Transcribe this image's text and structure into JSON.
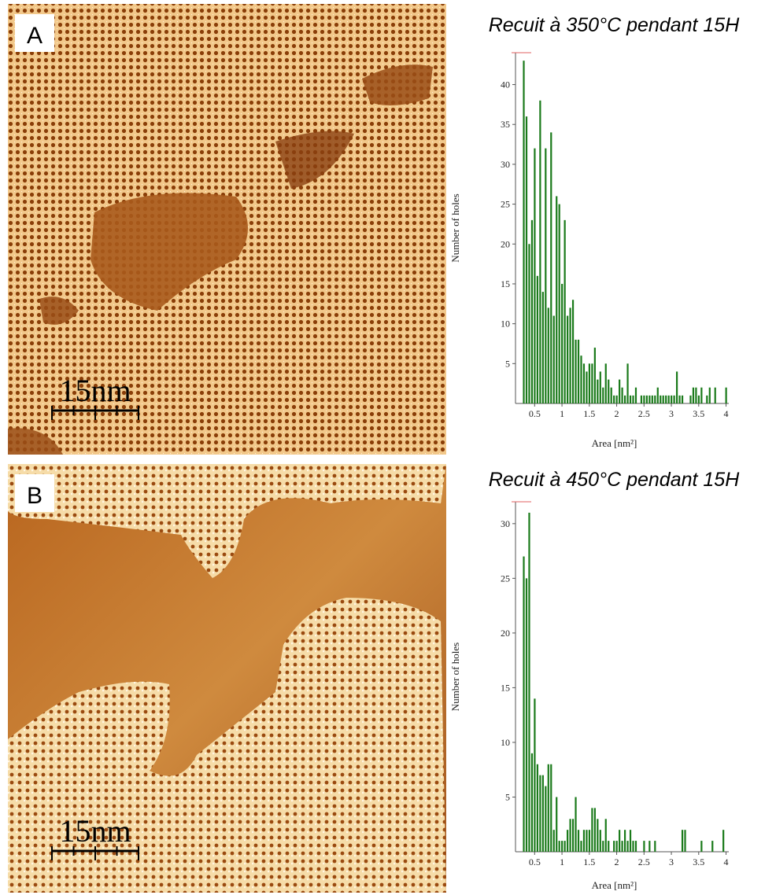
{
  "chart_data": [
    {
      "type": "bar",
      "title": "Recuit à 350°C pendant 15H",
      "panel_label": "A",
      "scale_bar_label": "15nm",
      "x_label": "Area [nm²]",
      "y_label": "Number of holes",
      "color": "#1a7a1a",
      "x": [
        0.3,
        0.35,
        0.4,
        0.45,
        0.5,
        0.55,
        0.6,
        0.65,
        0.7,
        0.75,
        0.8,
        0.85,
        0.9,
        0.95,
        1.0,
        1.05,
        1.1,
        1.15,
        1.2,
        1.25,
        1.3,
        1.35,
        1.4,
        1.45,
        1.5,
        1.55,
        1.6,
        1.65,
        1.7,
        1.75,
        1.8,
        1.85,
        1.9,
        1.95,
        2.0,
        2.05,
        2.1,
        2.15,
        2.2,
        2.25,
        2.3,
        2.35,
        2.4,
        2.45,
        2.5,
        2.55,
        2.6,
        2.65,
        2.7,
        2.75,
        2.8,
        2.85,
        2.9,
        2.95,
        3.0,
        3.05,
        3.1,
        3.15,
        3.2,
        3.25,
        3.3,
        3.35,
        3.4,
        3.45,
        3.5,
        3.55,
        3.6,
        3.65,
        3.7,
        3.75,
        3.8,
        3.85,
        3.9,
        3.95,
        4.0
      ],
      "values": [
        43,
        36,
        20,
        23,
        32,
        16,
        38,
        14,
        32,
        12,
        34,
        11,
        26,
        25,
        15,
        23,
        11,
        12,
        13,
        8,
        8,
        6,
        5,
        4,
        5,
        5,
        7,
        3,
        4,
        2,
        5,
        3,
        2,
        1,
        1,
        3,
        2,
        1,
        5,
        1,
        1,
        2,
        0,
        1,
        1,
        1,
        1,
        1,
        1,
        2,
        1,
        1,
        1,
        1,
        1,
        1,
        4,
        1,
        1,
        0,
        0,
        1,
        2,
        2,
        1,
        2,
        0,
        1,
        2,
        0,
        2,
        0,
        0,
        0,
        2
      ],
      "xlim": [
        0.15,
        4.05
      ],
      "ylim": [
        0,
        44
      ],
      "xticks": [
        0.5,
        1,
        1.5,
        2,
        2.5,
        3,
        3.5,
        4
      ],
      "yticks": [
        5,
        10,
        15,
        20,
        25,
        30,
        35,
        40
      ]
    },
    {
      "type": "bar",
      "title": "Recuit à 450°C pendant 15H",
      "panel_label": "B",
      "scale_bar_label": "15nm",
      "x_label": "Area [nm²]",
      "y_label": "Number of holes",
      "color": "#1a7a1a",
      "x": [
        0.3,
        0.35,
        0.4,
        0.45,
        0.5,
        0.55,
        0.6,
        0.65,
        0.7,
        0.75,
        0.8,
        0.85,
        0.9,
        0.95,
        1.0,
        1.05,
        1.1,
        1.15,
        1.2,
        1.25,
        1.3,
        1.35,
        1.4,
        1.45,
        1.5,
        1.55,
        1.6,
        1.65,
        1.7,
        1.75,
        1.8,
        1.85,
        1.9,
        1.95,
        2.0,
        2.05,
        2.1,
        2.15,
        2.2,
        2.25,
        2.3,
        2.35,
        2.4,
        2.45,
        2.5,
        2.55,
        2.6,
        2.65,
        2.7,
        2.75,
        2.8,
        2.85,
        2.9,
        2.95,
        3.0,
        3.05,
        3.1,
        3.15,
        3.2,
        3.25,
        3.3,
        3.35,
        3.4,
        3.45,
        3.5,
        3.55,
        3.6,
        3.65,
        3.7,
        3.75,
        3.8,
        3.85,
        3.9,
        3.95,
        4.0
      ],
      "values": [
        27,
        25,
        31,
        9,
        14,
        8,
        7,
        7,
        6,
        8,
        8,
        2,
        5,
        1,
        1,
        1,
        2,
        3,
        3,
        5,
        2,
        1,
        2,
        2,
        2,
        4,
        4,
        3,
        2,
        1,
        3,
        1,
        0,
        1,
        1,
        2,
        1,
        2,
        1,
        2,
        1,
        1,
        0,
        0,
        1,
        0,
        1,
        0,
        1,
        0,
        0,
        0,
        0,
        0,
        0,
        0,
        0,
        0,
        2,
        2,
        0,
        0,
        0,
        0,
        0,
        1,
        0,
        0,
        0,
        1,
        0,
        0,
        0,
        2,
        0
      ],
      "xlim": [
        0.15,
        4.05
      ],
      "ylim": [
        0,
        32
      ],
      "xticks": [
        0.5,
        1,
        1.5,
        2,
        2.5,
        3,
        3.5,
        4
      ],
      "yticks": [
        5,
        10,
        15,
        20,
        25,
        30
      ]
    }
  ]
}
